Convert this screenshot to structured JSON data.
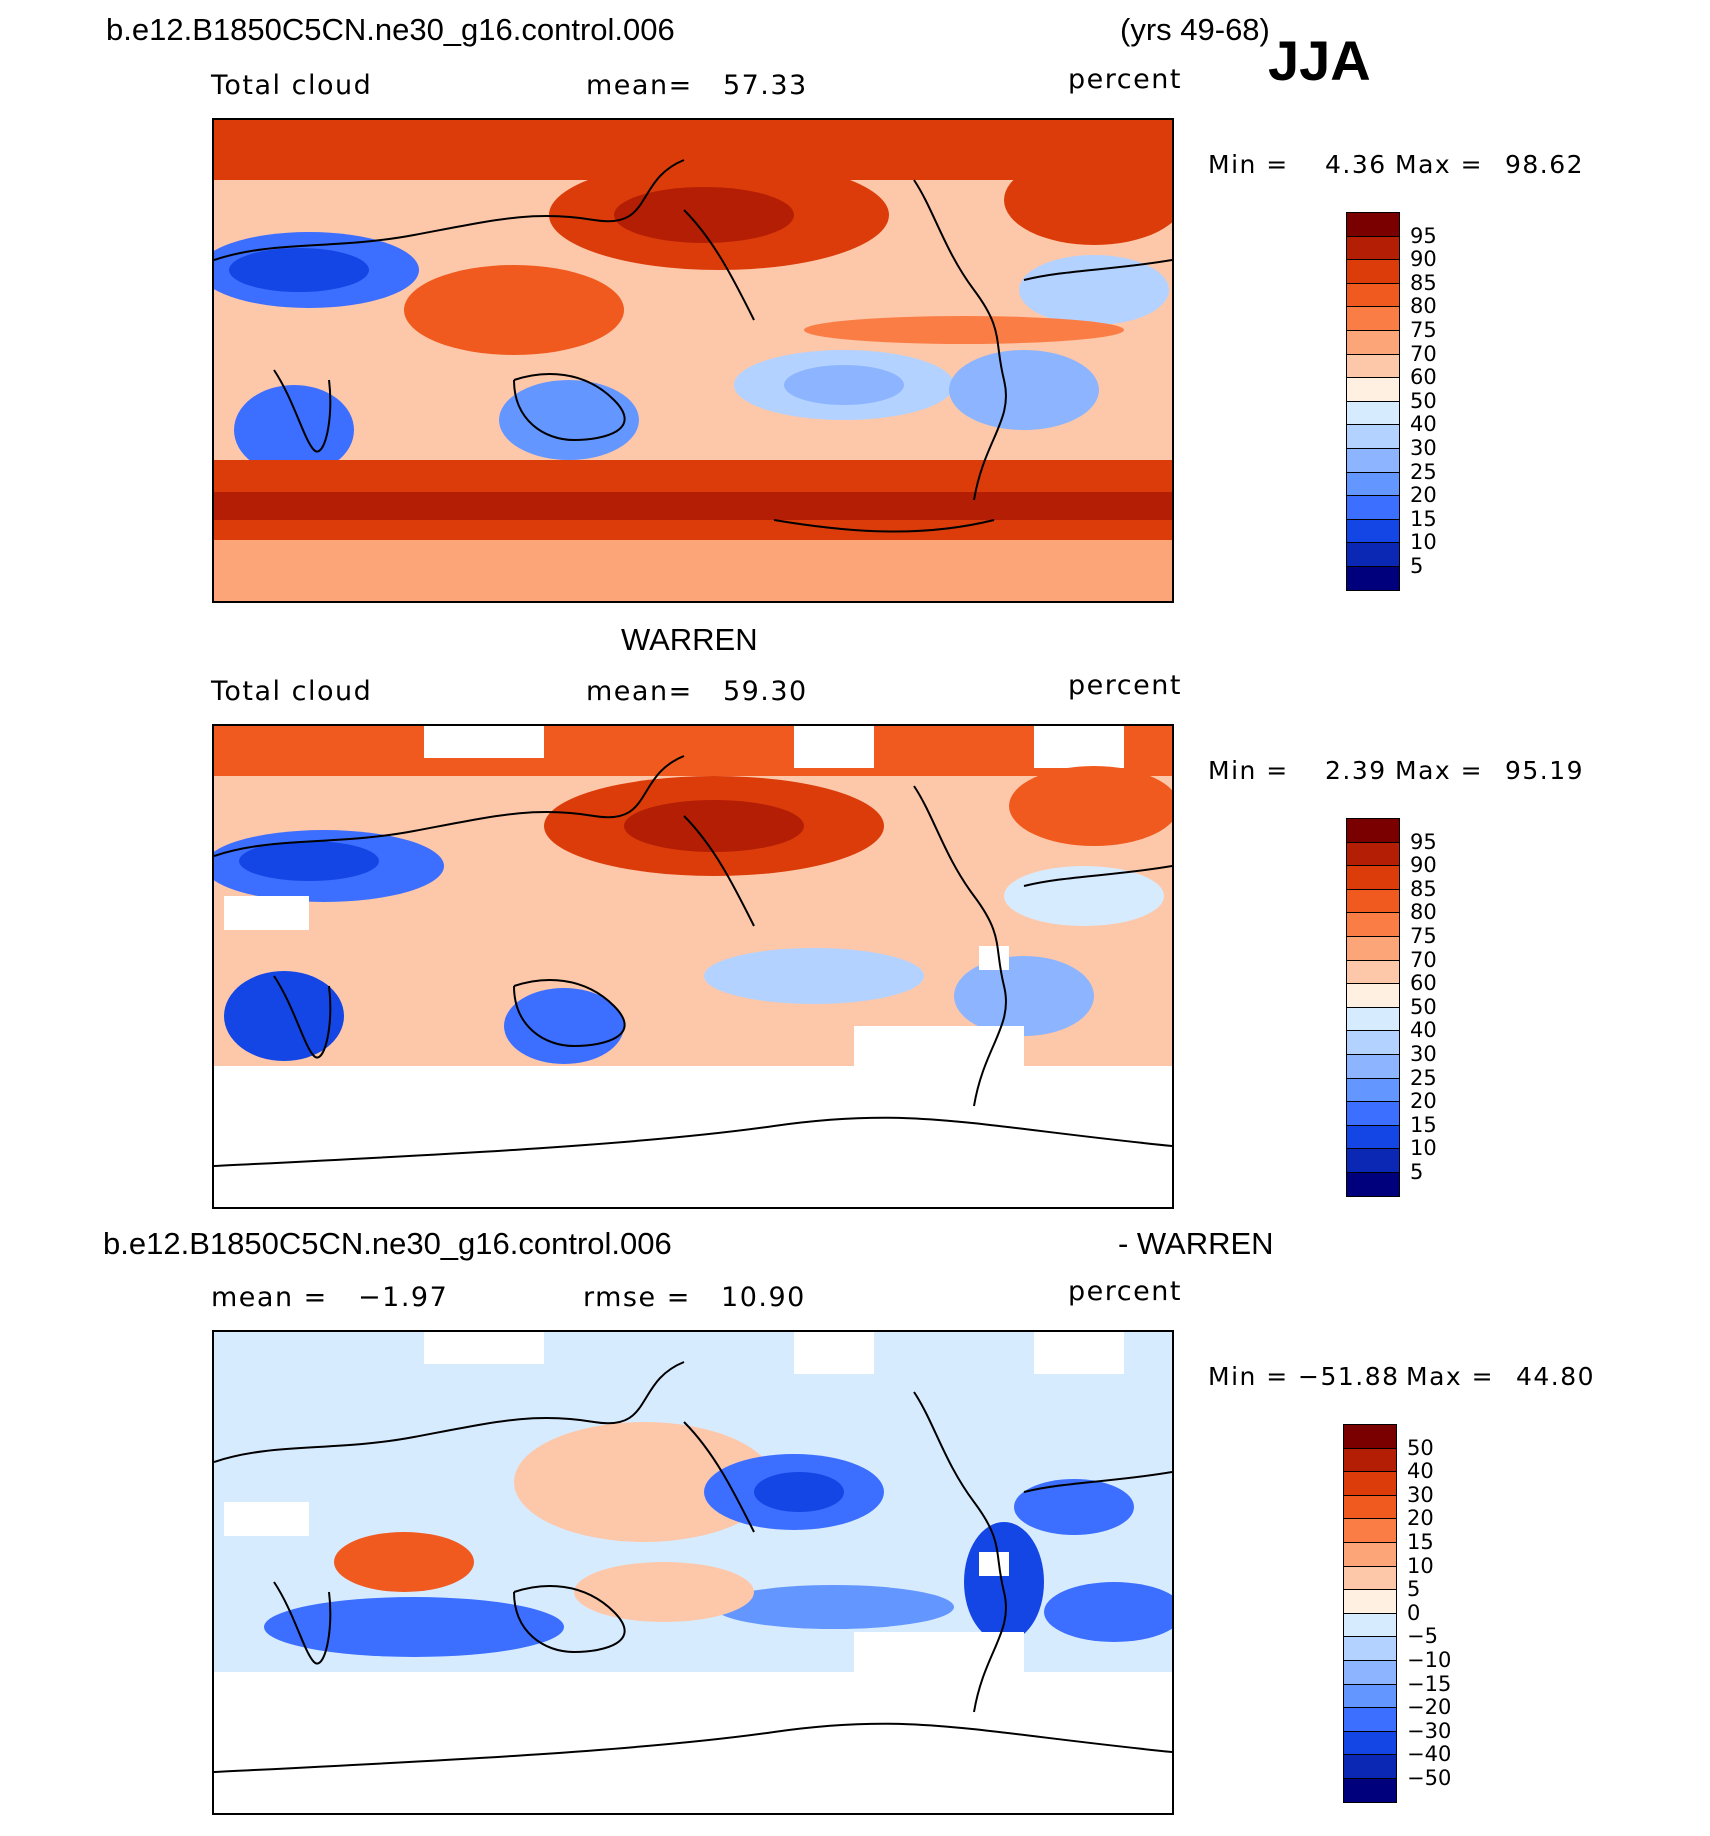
{
  "header": {
    "case_name": "b.e12.B1850C5CN.ne30_g16.control.006",
    "years": "(yrs 49-68)",
    "season": "JJA"
  },
  "panels": [
    {
      "id": "model",
      "title": "",
      "left_label": "Total cloud",
      "center_label": "mean=   57.33",
      "right_label": "percent",
      "min_label": "Min =",
      "min_value": "4.36",
      "max_label": "Max =",
      "max_value": "98.62",
      "colorbar_levels": [
        "95",
        "90",
        "85",
        "80",
        "75",
        "70",
        "60",
        "50",
        "40",
        "30",
        "25",
        "20",
        "15",
        "10",
        "5"
      ]
    },
    {
      "id": "obs",
      "title": "WARREN",
      "left_label": "Total cloud",
      "center_label": "mean=   59.30",
      "right_label": "percent",
      "min_label": "Min =",
      "min_value": "2.39",
      "max_label": "Max =",
      "max_value": "95.19",
      "colorbar_levels": [
        "95",
        "90",
        "85",
        "80",
        "75",
        "70",
        "60",
        "50",
        "40",
        "30",
        "25",
        "20",
        "15",
        "10",
        "5"
      ]
    },
    {
      "id": "diff",
      "title_left": "b.e12.B1850C5CN.ne30_g16.control.006",
      "title_right": "- WARREN",
      "left_label": "mean =   −1.97",
      "center_label": "rmse =   10.90",
      "right_label": "percent",
      "min_label": "Min =",
      "min_value": "−51.88",
      "max_label": "Max =",
      "max_value": "44.80",
      "colorbar_levels": [
        "50",
        "40",
        "30",
        "20",
        "15",
        "10",
        "5",
        "0",
        "−5",
        "−10",
        "−15",
        "−20",
        "−30",
        "−40",
        "−50"
      ]
    }
  ],
  "colors": {
    "scale": [
      "#7a0000",
      "#b41e05",
      "#dc3c0a",
      "#f05a1e",
      "#fa7d46",
      "#fca578",
      "#fdc8aa",
      "#fff0e1",
      "#d7ebff",
      "#b4d2ff",
      "#8cb4ff",
      "#6496ff",
      "#3c6eff",
      "#1446e6",
      "#0a28b4",
      "#00007d"
    ],
    "blank": "#ffffff",
    "coast": "#000000"
  }
}
